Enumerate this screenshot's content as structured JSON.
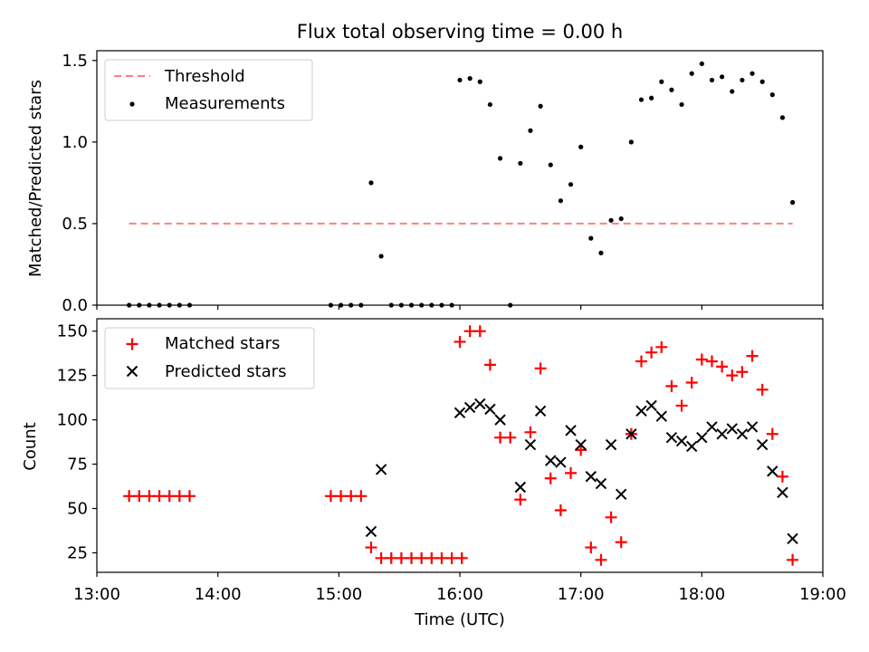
{
  "chart_data": [
    {
      "type": "scatter",
      "title": "Flux total observing time = 0.00 h",
      "xlabel": "",
      "ylabel": "Matched/Predicted stars",
      "xlim": [
        "13:00",
        "19:00"
      ],
      "ylim": [
        0,
        1.56
      ],
      "y_ticks": [
        0.0,
        0.5,
        1.0,
        1.5
      ],
      "y_tick_labels": [
        "0.0",
        "0.5",
        "1.0",
        "1.5"
      ],
      "grid": false,
      "legend": {
        "placement": "upper-left",
        "entries": [
          "Threshold",
          "Measurements"
        ]
      },
      "threshold": {
        "name": "Threshold",
        "value": 0.5,
        "x_start": "13:16",
        "x_end": "18:45",
        "color": "#ff7f7f",
        "style": "dashed"
      },
      "series": [
        {
          "name": "Measurements",
          "color": "#000000",
          "marker": "dot",
          "points": [
            [
              "13:16",
              0.0
            ],
            [
              "13:21",
              0.0
            ],
            [
              "13:26",
              0.0
            ],
            [
              "13:31",
              0.0
            ],
            [
              "13:36",
              0.0
            ],
            [
              "13:41",
              0.0
            ],
            [
              "13:46",
              0.0
            ],
            [
              "14:56",
              0.0
            ],
            [
              "15:01",
              0.0
            ],
            [
              "15:06",
              0.0
            ],
            [
              "15:11",
              0.0
            ],
            [
              "15:16",
              0.75
            ],
            [
              "15:21",
              0.3
            ],
            [
              "15:26",
              0.0
            ],
            [
              "15:31",
              0.0
            ],
            [
              "15:36",
              0.0
            ],
            [
              "15:41",
              0.0
            ],
            [
              "15:46",
              0.0
            ],
            [
              "15:51",
              0.0
            ],
            [
              "15:56",
              0.0
            ],
            [
              "16:00",
              1.38
            ],
            [
              "16:05",
              1.39
            ],
            [
              "16:10",
              1.37
            ],
            [
              "16:15",
              1.23
            ],
            [
              "16:20",
              0.9
            ],
            [
              "16:25",
              0.0
            ],
            [
              "16:30",
              0.87
            ],
            [
              "16:35",
              1.07
            ],
            [
              "16:40",
              1.22
            ],
            [
              "16:45",
              0.86
            ],
            [
              "16:50",
              0.64
            ],
            [
              "16:55",
              0.74
            ],
            [
              "17:00",
              0.97
            ],
            [
              "17:05",
              0.41
            ],
            [
              "17:10",
              0.32
            ],
            [
              "17:15",
              0.52
            ],
            [
              "17:20",
              0.53
            ],
            [
              "17:25",
              1.0
            ],
            [
              "17:30",
              1.26
            ],
            [
              "17:35",
              1.27
            ],
            [
              "17:40",
              1.37
            ],
            [
              "17:45",
              1.32
            ],
            [
              "17:50",
              1.23
            ],
            [
              "17:55",
              1.42
            ],
            [
              "18:00",
              1.48
            ],
            [
              "18:05",
              1.38
            ],
            [
              "18:10",
              1.4
            ],
            [
              "18:15",
              1.31
            ],
            [
              "18:20",
              1.38
            ],
            [
              "18:25",
              1.42
            ],
            [
              "18:30",
              1.37
            ],
            [
              "18:35",
              1.29
            ],
            [
              "18:40",
              1.15
            ],
            [
              "18:45",
              0.63
            ]
          ]
        }
      ]
    },
    {
      "type": "scatter",
      "title": "",
      "xlabel": "Time (UTC)",
      "ylabel": "Count",
      "xlim": [
        "13:00",
        "19:00"
      ],
      "ylim": [
        14,
        157
      ],
      "x_ticks": [
        "13:00",
        "14:00",
        "15:00",
        "16:00",
        "17:00",
        "18:00",
        "19:00"
      ],
      "y_ticks": [
        25,
        50,
        75,
        100,
        125,
        150
      ],
      "y_tick_labels": [
        "25",
        "50",
        "75",
        "100",
        "125",
        "150"
      ],
      "grid": false,
      "legend": {
        "placement": "upper-left",
        "entries": [
          "Matched stars",
          "Predicted stars"
        ]
      },
      "series": [
        {
          "name": "Matched stars",
          "color": "#ff0000",
          "marker": "plus",
          "points": [
            [
              "13:16",
              57
            ],
            [
              "13:21",
              57
            ],
            [
              "13:26",
              57
            ],
            [
              "13:31",
              57
            ],
            [
              "13:36",
              57
            ],
            [
              "13:41",
              57
            ],
            [
              "13:46",
              57
            ],
            [
              "14:56",
              57
            ],
            [
              "15:01",
              57
            ],
            [
              "15:06",
              57
            ],
            [
              "15:11",
              57
            ],
            [
              "15:16",
              28
            ],
            [
              "15:21",
              22
            ],
            [
              "15:26",
              22
            ],
            [
              "15:31",
              22
            ],
            [
              "15:36",
              22
            ],
            [
              "15:41",
              22
            ],
            [
              "15:46",
              22
            ],
            [
              "15:51",
              22
            ],
            [
              "15:56",
              22
            ],
            [
              "16:01",
              22
            ],
            [
              "16:00",
              144
            ],
            [
              "16:05",
              150
            ],
            [
              "16:10",
              150
            ],
            [
              "16:15",
              131
            ],
            [
              "16:20",
              90
            ],
            [
              "16:25",
              90
            ],
            [
              "16:30",
              55
            ],
            [
              "16:35",
              93
            ],
            [
              "16:40",
              129
            ],
            [
              "16:45",
              67
            ],
            [
              "16:50",
              49
            ],
            [
              "16:55",
              70
            ],
            [
              "17:00",
              83
            ],
            [
              "17:05",
              28
            ],
            [
              "17:10",
              21
            ],
            [
              "17:15",
              45
            ],
            [
              "17:20",
              31
            ],
            [
              "17:25",
              92
            ],
            [
              "17:30",
              133
            ],
            [
              "17:35",
              138
            ],
            [
              "17:40",
              141
            ],
            [
              "17:45",
              119
            ],
            [
              "17:50",
              108
            ],
            [
              "17:55",
              121
            ],
            [
              "18:00",
              134
            ],
            [
              "18:05",
              133
            ],
            [
              "18:10",
              130
            ],
            [
              "18:15",
              125
            ],
            [
              "18:20",
              127
            ],
            [
              "18:25",
              136
            ],
            [
              "18:30",
              117
            ],
            [
              "18:35",
              92
            ],
            [
              "18:40",
              68
            ],
            [
              "18:45",
              21
            ]
          ]
        },
        {
          "name": "Predicted stars",
          "color": "#000000",
          "marker": "x",
          "points": [
            [
              "15:16",
              37
            ],
            [
              "15:21",
              72
            ],
            [
              "16:00",
              104
            ],
            [
              "16:05",
              107
            ],
            [
              "16:10",
              109
            ],
            [
              "16:15",
              106
            ],
            [
              "16:20",
              100
            ],
            [
              "16:30",
              62
            ],
            [
              "16:35",
              86
            ],
            [
              "16:40",
              105
            ],
            [
              "16:45",
              77
            ],
            [
              "16:50",
              76
            ],
            [
              "16:55",
              94
            ],
            [
              "17:00",
              86
            ],
            [
              "17:05",
              68
            ],
            [
              "17:10",
              64
            ],
            [
              "17:15",
              86
            ],
            [
              "17:20",
              58
            ],
            [
              "17:25",
              92
            ],
            [
              "17:30",
              105
            ],
            [
              "17:35",
              108
            ],
            [
              "17:40",
              102
            ],
            [
              "17:45",
              90
            ],
            [
              "17:50",
              88
            ],
            [
              "17:55",
              85
            ],
            [
              "18:00",
              90
            ],
            [
              "18:05",
              96
            ],
            [
              "18:10",
              92
            ],
            [
              "18:15",
              95
            ],
            [
              "18:20",
              92
            ],
            [
              "18:25",
              96
            ],
            [
              "18:30",
              86
            ],
            [
              "18:35",
              71
            ],
            [
              "18:40",
              59
            ],
            [
              "18:45",
              33
            ]
          ]
        }
      ]
    }
  ]
}
